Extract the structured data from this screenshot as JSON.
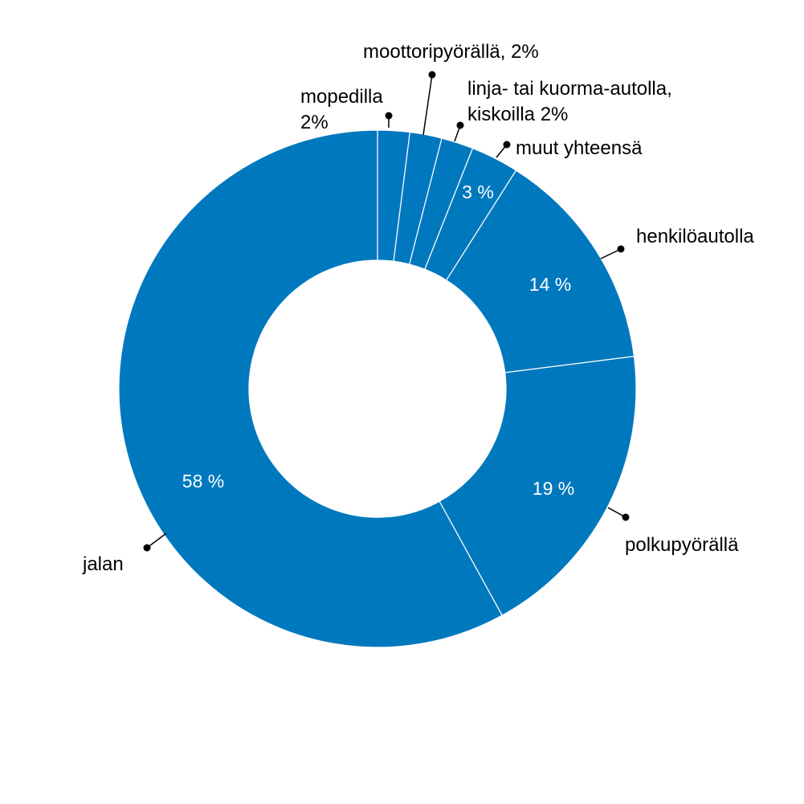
{
  "chart_data": {
    "type": "donut",
    "title": "",
    "color": "#0078BE",
    "slices": [
      {
        "name": "mopedilla",
        "value": 2,
        "outer_label": [
          "mopedilla",
          "2%"
        ],
        "inner_label": ""
      },
      {
        "name": "moottoripyörällä",
        "value": 2,
        "outer_label": [
          "moottoripyörällä, 2%"
        ],
        "inner_label": ""
      },
      {
        "name": "linja- tai kuorma-autolla, kiskoilla",
        "value": 2,
        "outer_label": [
          "linja- tai kuorma-autolla,",
          "kiskoilla 2%"
        ],
        "inner_label": ""
      },
      {
        "name": "muut yhteensä",
        "value": 3,
        "outer_label": [
          "muut yhteensä"
        ],
        "inner_label": "3 %"
      },
      {
        "name": "henkilöautolla",
        "value": 14,
        "outer_label": [
          "henkilöautolla"
        ],
        "inner_label": "14 %"
      },
      {
        "name": "polkupyörällä",
        "value": 19,
        "outer_label": [
          "polkupyörällä"
        ],
        "inner_label": "19 %"
      },
      {
        "name": "jalan",
        "value": 58,
        "outer_label": [
          "jalan"
        ],
        "inner_label": "58 %"
      }
    ]
  }
}
